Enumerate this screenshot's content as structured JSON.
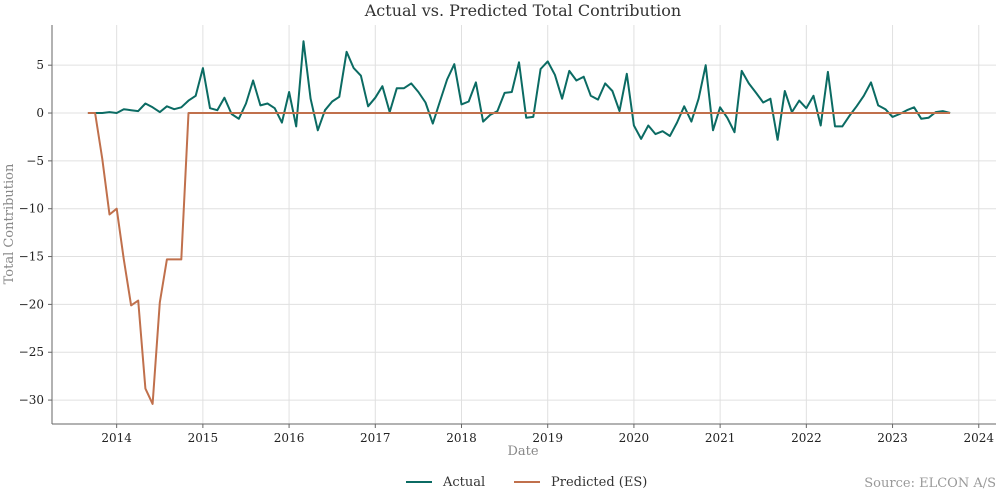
{
  "chart_data": {
    "type": "line",
    "title": "Actual vs. Predicted Total Contribution",
    "xlabel": "Date",
    "ylabel": "Total Contribution",
    "xlim": [
      2013.25,
      2024.2
    ],
    "ylim": [
      -32.5,
      9.2
    ],
    "x_ticks": [
      2014,
      2015,
      2016,
      2017,
      2018,
      2019,
      2020,
      2021,
      2022,
      2023,
      2024
    ],
    "x_tick_labels": [
      "2014",
      "2015",
      "2016",
      "2017",
      "2018",
      "2019",
      "2020",
      "2021",
      "2022",
      "2023",
      "2024"
    ],
    "y_ticks": [
      5,
      0,
      -5,
      -10,
      -15,
      -20,
      -25,
      -30
    ],
    "y_tick_labels": [
      "5",
      "0",
      "−5",
      "−10",
      "−15",
      "−20",
      "−25",
      "−30"
    ],
    "grid": true,
    "legend_position": "bottom-center",
    "series": [
      {
        "name": "Actual",
        "color": "#0b6b63",
        "x": [
          2013.667,
          2013.75,
          2013.833,
          2013.917,
          2014.0,
          2014.083,
          2014.167,
          2014.25,
          2014.333,
          2014.417,
          2014.5,
          2014.583,
          2014.667,
          2014.75,
          2014.833,
          2014.917,
          2015.0,
          2015.083,
          2015.167,
          2015.25,
          2015.333,
          2015.417,
          2015.5,
          2015.583,
          2015.667,
          2015.75,
          2015.833,
          2015.917,
          2016.0,
          2016.083,
          2016.167,
          2016.25,
          2016.333,
          2016.417,
          2016.5,
          2016.583,
          2016.667,
          2016.75,
          2016.833,
          2016.917,
          2017.0,
          2017.083,
          2017.167,
          2017.25,
          2017.333,
          2017.417,
          2017.5,
          2017.583,
          2017.667,
          2017.75,
          2017.833,
          2017.917,
          2018.0,
          2018.083,
          2018.167,
          2018.25,
          2018.333,
          2018.417,
          2018.5,
          2018.583,
          2018.667,
          2018.75,
          2018.833,
          2018.917,
          2019.0,
          2019.083,
          2019.167,
          2019.25,
          2019.333,
          2019.417,
          2019.5,
          2019.583,
          2019.667,
          2019.75,
          2019.833,
          2019.917,
          2020.0,
          2020.083,
          2020.167,
          2020.25,
          2020.333,
          2020.417,
          2020.5,
          2020.583,
          2020.667,
          2020.75,
          2020.833,
          2020.917,
          2021.0,
          2021.083,
          2021.167,
          2021.25,
          2021.333,
          2021.417,
          2021.5,
          2021.583,
          2021.667,
          2021.75,
          2021.833,
          2021.917,
          2022.0,
          2022.083,
          2022.167,
          2022.25,
          2022.333,
          2022.417,
          2022.5,
          2022.583,
          2022.667,
          2022.75,
          2022.833,
          2022.917,
          2023.0,
          2023.083,
          2023.167,
          2023.25,
          2023.333,
          2023.417,
          2023.5,
          2023.583,
          2023.667
        ],
        "y": [
          0.0,
          0.0,
          0.0,
          0.1,
          0.0,
          0.4,
          0.3,
          0.2,
          1.0,
          0.6,
          0.1,
          0.7,
          0.4,
          0.6,
          1.3,
          1.8,
          4.7,
          0.5,
          0.3,
          1.6,
          -0.1,
          -0.6,
          1.0,
          3.4,
          0.8,
          1.0,
          0.5,
          -1.0,
          2.2,
          -1.4,
          7.5,
          1.5,
          -1.8,
          0.3,
          1.2,
          1.7,
          6.4,
          4.7,
          3.9,
          0.7,
          1.6,
          2.8,
          0.1,
          2.6,
          2.6,
          3.1,
          2.2,
          1.1,
          -1.1,
          1.2,
          3.5,
          5.1,
          0.9,
          1.2,
          3.2,
          -0.9,
          -0.2,
          0.2,
          2.1,
          2.2,
          5.3,
          -0.5,
          -0.4,
          4.6,
          5.4,
          4.0,
          1.5,
          4.4,
          3.4,
          3.8,
          1.8,
          1.4,
          3.1,
          2.3,
          0.2,
          4.1,
          -1.3,
          -2.7,
          -1.3,
          -2.2,
          -1.9,
          -2.4,
          -1.0,
          0.7,
          -0.9,
          1.5,
          5.0,
          -1.8,
          0.6,
          -0.5,
          -2.0,
          4.4,
          3.1,
          2.1,
          1.1,
          1.5,
          -2.8,
          2.3,
          0.1,
          1.3,
          0.5,
          1.8,
          -1.3,
          4.3,
          -1.4,
          -1.4,
          -0.3,
          0.7,
          1.8,
          3.2,
          0.8,
          0.4,
          -0.4,
          -0.1,
          0.3,
          0.6,
          -0.6,
          -0.5,
          0.1,
          0.2,
          0.0
        ]
      },
      {
        "name": "Predicted (ES)",
        "color": "#c0704c",
        "x": [
          2013.667,
          2013.75,
          2013.833,
          2013.917,
          2014.0,
          2014.083,
          2014.167,
          2014.25,
          2014.333,
          2014.417,
          2014.5,
          2014.583,
          2014.667,
          2014.75,
          2014.833,
          2014.917,
          2015.0,
          2015.5,
          2016.0,
          2016.5,
          2017.0,
          2017.5,
          2018.0,
          2018.5,
          2019.0,
          2019.5,
          2020.0,
          2020.5,
          2021.0,
          2021.5,
          2022.0,
          2022.5,
          2023.0,
          2023.5,
          2023.667
        ],
        "y": [
          0.0,
          0.0,
          -4.8,
          -10.6,
          -10.0,
          -15.3,
          -20.1,
          -19.6,
          -28.8,
          -30.4,
          -19.8,
          -15.3,
          -15.3,
          -15.3,
          0.0,
          0.0,
          0.0,
          0.0,
          0.0,
          0.0,
          0.0,
          0.0,
          0.0,
          0.0,
          0.0,
          0.0,
          0.0,
          0.0,
          0.0,
          0.0,
          0.0,
          0.0,
          0.0,
          0.0,
          0.0
        ]
      }
    ],
    "legend": [
      "Actual",
      "Predicted (ES)"
    ],
    "source": "Source: ELCON A/S"
  }
}
